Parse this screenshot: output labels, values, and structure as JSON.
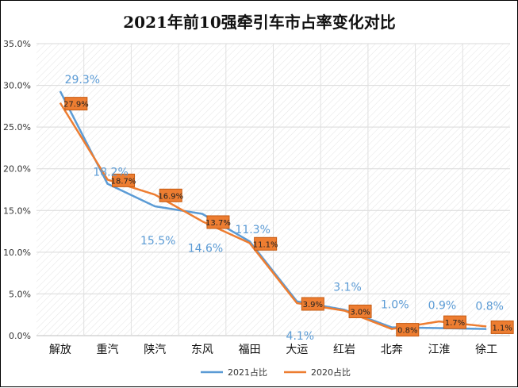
{
  "chart_data": {
    "type": "line",
    "title": "2021年前10强牵引车市占率变化对比",
    "categories": [
      "解放",
      "重汽",
      "陕汽",
      "东风",
      "福田",
      "大运",
      "红岩",
      "北奔",
      "江淮",
      "徐工"
    ],
    "series": [
      {
        "name": "2021占比",
        "values": [
          29.3,
          18.2,
          15.5,
          14.6,
          11.3,
          4.1,
          3.1,
          1.0,
          0.9,
          0.8
        ],
        "labels": [
          "29.3%",
          "18.2%",
          "15.5%",
          "14.6%",
          "11.3%",
          "4.1%",
          "3.1%",
          "1.0%",
          "0.9%",
          "0.8%"
        ],
        "color": "#5b9bd5"
      },
      {
        "name": "2020占比",
        "values": [
          27.9,
          18.7,
          16.9,
          13.7,
          11.1,
          3.9,
          3.0,
          0.8,
          1.7,
          1.1
        ],
        "labels": [
          "27.9%",
          "18.7%",
          "16.9%",
          "13.7%",
          "11.1%",
          "3.9%",
          "3.0%",
          "0.8%",
          "1.7%",
          "1.1%"
        ],
        "color": "#ed7d31"
      }
    ],
    "y_ticks": [
      "0.0%",
      "5.0%",
      "10.0%",
      "15.0%",
      "20.0%",
      "25.0%",
      "30.0%",
      "35.0%"
    ],
    "ylim": [
      0,
      35
    ],
    "grid": true,
    "legend_position": "bottom"
  }
}
